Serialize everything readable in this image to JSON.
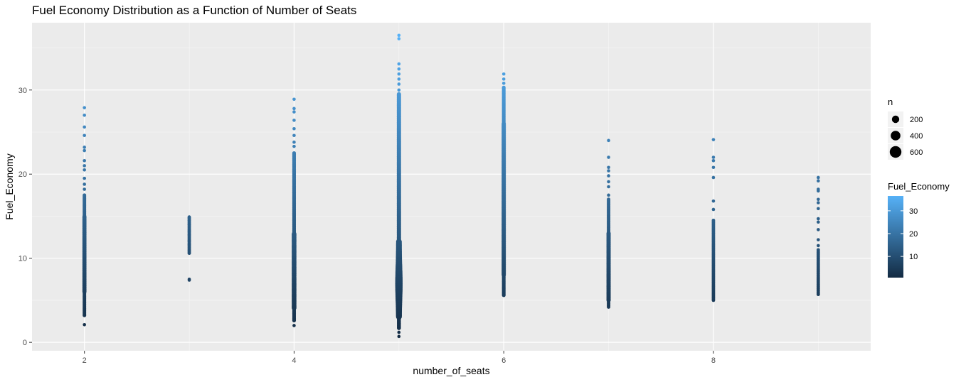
{
  "chart_data": {
    "type": "scatter",
    "title": "Fuel Economy Distribution as a Function of Number of Seats",
    "xlabel": "number_of_seats",
    "ylabel": "Fuel_Economy",
    "xlim": [
      1.5,
      9.5
    ],
    "ylim": [
      -1,
      38
    ],
    "x_ticks": [
      2,
      4,
      6,
      8
    ],
    "y_ticks": [
      0,
      10,
      20,
      30
    ],
    "grid": true,
    "legend_position": "right",
    "color_scale": {
      "low": "#132B43",
      "high": "#56B1F7",
      "min": 0.7,
      "max": 36.5
    },
    "size_legend": {
      "title": "n",
      "values": [
        200,
        400,
        600
      ]
    },
    "color_legend": {
      "title": "Fuel_Economy",
      "ticks": [
        10,
        20,
        30
      ]
    },
    "series": [
      {
        "seats": 2,
        "min": 2.1,
        "dense_low": 3.2,
        "dense_high": 17.5,
        "max": 27.9,
        "outliers": [
          18.2,
          18.8,
          19.5,
          20.5,
          21.0,
          21.6,
          22.8,
          23.2,
          24.6,
          25.6,
          27.0,
          27.9,
          2.1
        ]
      },
      {
        "seats": 3,
        "min": 7.4,
        "dense_low": 10.6,
        "dense_high": 14.9,
        "max": 14.9,
        "outliers": [
          7.4,
          7.5,
          10.6,
          10.9,
          11.6,
          12.1,
          12.8,
          13.2,
          14.0,
          14.5,
          14.8
        ]
      },
      {
        "seats": 4,
        "min": 2.0,
        "dense_low": 2.6,
        "dense_high": 22.5,
        "max": 28.9,
        "outliers": [
          23.3,
          23.8,
          24.6,
          25.4,
          26.4,
          27.4,
          27.8,
          28.9,
          2.0
        ]
      },
      {
        "seats": 5,
        "min": 0.7,
        "dense_low": 1.7,
        "dense_high": 29.5,
        "max": 36.5,
        "outliers": [
          30.0,
          30.7,
          31.3,
          31.9,
          32.5,
          33.1,
          36.1,
          36.5,
          0.7,
          1.2
        ]
      },
      {
        "seats": 6,
        "min": 5.5,
        "dense_low": 5.6,
        "dense_high": 30.3,
        "max": 31.9,
        "outliers": [
          30.8,
          31.3,
          31.9
        ]
      },
      {
        "seats": 7,
        "min": 4.0,
        "dense_low": 4.2,
        "dense_high": 17.0,
        "max": 24.0,
        "outliers": [
          17.5,
          18.5,
          19.1,
          19.8,
          20.4,
          20.8,
          22.0,
          24.0
        ]
      },
      {
        "seats": 8,
        "min": 4.8,
        "dense_low": 5.0,
        "dense_high": 14.5,
        "max": 24.1,
        "outliers": [
          15.8,
          16.8,
          19.6,
          20.8,
          21.6,
          22.0,
          24.1
        ]
      },
      {
        "seats": 9,
        "min": 5.7,
        "dense_low": 5.7,
        "dense_high": 11.0,
        "max": 19.6,
        "outliers": [
          11.5,
          12.2,
          13.4,
          14.3,
          14.7,
          15.9,
          16.6,
          17.0,
          18.0,
          18.2,
          19.2,
          19.6
        ]
      }
    ]
  }
}
